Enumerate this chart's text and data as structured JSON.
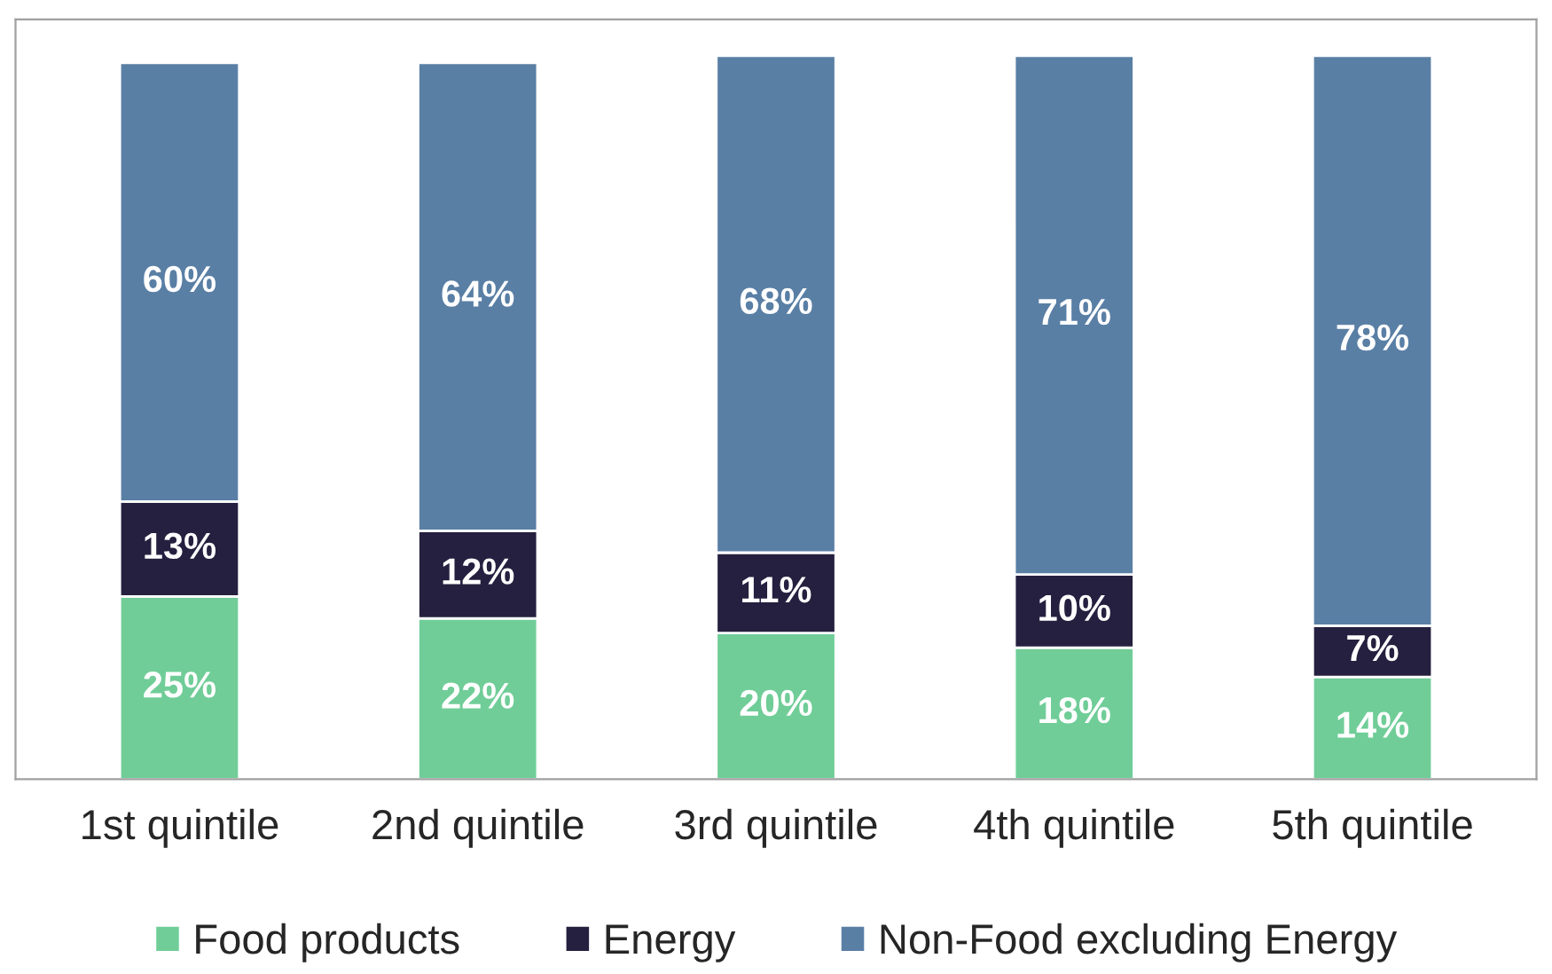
{
  "chart_data": {
    "type": "bar",
    "stacked": true,
    "categories": [
      "1st quintile",
      "2nd quintile",
      "3rd quintile",
      "4th quintile",
      "5th quintile"
    ],
    "series": [
      {
        "name": "Food products",
        "color": "#70cd98",
        "values": [
          25,
          22,
          20,
          18,
          14
        ],
        "value_labels": [
          "25%",
          "22%",
          "20%",
          "18%",
          "14%"
        ]
      },
      {
        "name": "Energy",
        "color": "#25203f",
        "values": [
          13,
          12,
          11,
          10,
          7
        ],
        "value_labels": [
          "13%",
          "12%",
          "11%",
          "10%",
          "7%"
        ]
      },
      {
        "name": "Non-Food excluding Energy",
        "color": "#5a7fa5",
        "values": [
          60,
          64,
          68,
          71,
          78
        ],
        "value_labels": [
          "60%",
          "64%",
          "68%",
          "71%",
          "78%"
        ]
      }
    ],
    "legend": "bottom",
    "grid": false,
    "tick_labels": "x"
  }
}
